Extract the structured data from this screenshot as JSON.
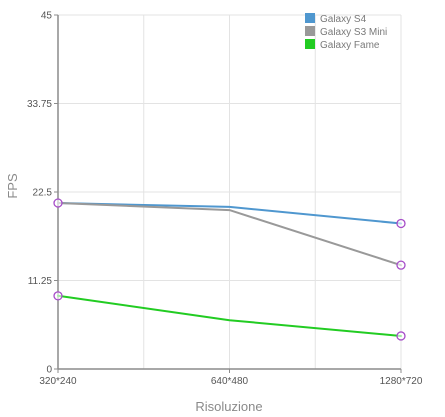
{
  "chart_data": {
    "type": "line",
    "title": "",
    "xlabel": "Risoluzione",
    "ylabel": "FPS",
    "categories": [
      "320*240",
      "640*480",
      "1280*720"
    ],
    "x_ticks": [
      "320*240",
      "640*480",
      "1280*720"
    ],
    "ylim": [
      0,
      45
    ],
    "y_ticks": [
      "0",
      "11.25",
      "22.5",
      "33.75",
      "45"
    ],
    "y_tick_values": [
      0,
      11.25,
      22.5,
      33.75,
      45
    ],
    "grid": true,
    "legend_position": "top-right",
    "series": [
      {
        "name": "Galaxy S4",
        "color": "#4f97cf",
        "values": [
          21.1,
          20.6,
          18.5
        ]
      },
      {
        "name": "Galaxy S3 Mini",
        "color": "#999999",
        "values": [
          21.1,
          20.2,
          13.2
        ]
      },
      {
        "name": "Galaxy Fame",
        "color": "#22cc22",
        "values": [
          9.3,
          6.2,
          4.2
        ]
      }
    ],
    "markers": {
      "color": "#a64dc8",
      "points": [
        [
          0,
          21.1
        ],
        [
          2,
          18.5
        ],
        [
          2,
          13.2
        ],
        [
          0,
          9.3
        ],
        [
          2,
          4.2
        ]
      ]
    }
  }
}
